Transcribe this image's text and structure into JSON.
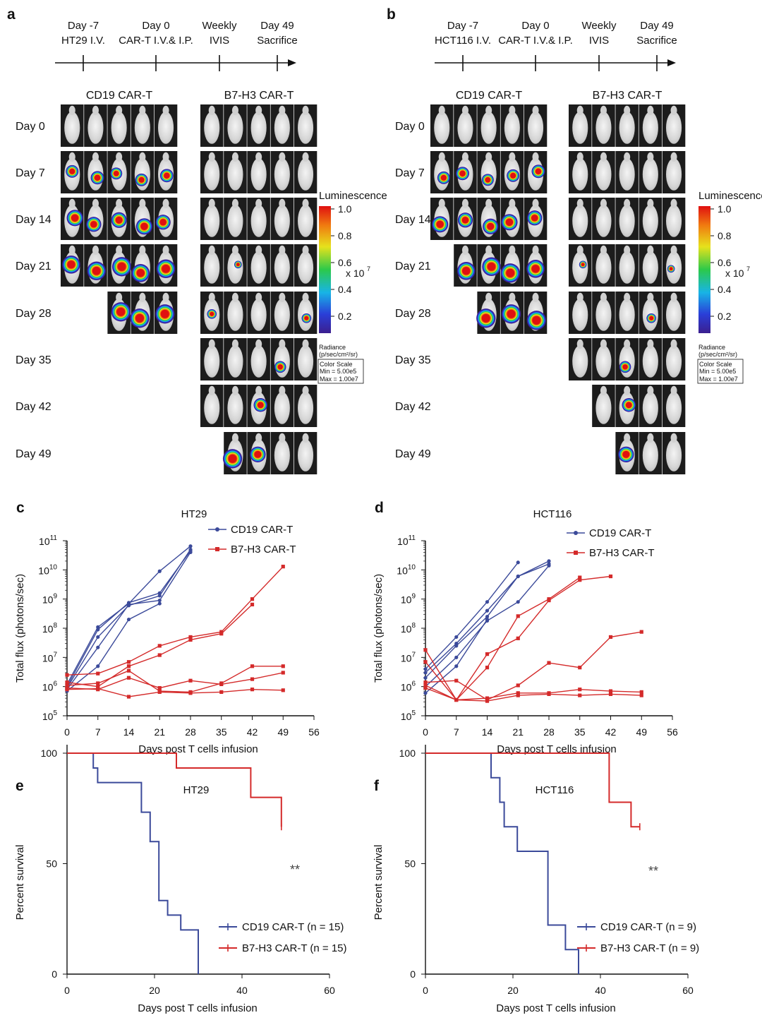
{
  "imaging_panels": [
    {
      "label": "a",
      "timeline": [
        {
          "top": "Day -7",
          "bottom": "HT29 I.V."
        },
        {
          "top": "Day 0",
          "bottom": "CAR-T I.V.& I.P."
        },
        {
          "top": "Weekly",
          "bottom": "IVIS"
        },
        {
          "top": "Day 49",
          "bottom": "Sacrifice"
        }
      ],
      "group_left": "CD19 CAR-T",
      "group_right": "B7-H3 CAR-T",
      "days": [
        "Day 0",
        "Day 7",
        "Day 14",
        "Day 21",
        "Day 28",
        "Day 35",
        "Day 42",
        "Day 49"
      ],
      "mice_left": [
        5,
        5,
        5,
        5,
        3,
        0,
        0,
        0
      ],
      "mice_right": [
        5,
        5,
        5,
        5,
        5,
        5,
        5,
        4
      ],
      "scale": {
        "title": "Luminescence",
        "ticks": [
          "1.0",
          "0.8",
          "0.6",
          "0.4",
          "0.2"
        ],
        "multiplier": "x 10",
        "multiplier_exp": "7",
        "radiance_line1": "Radiance",
        "radiance_line2": "(p/sec/cm²/sr)",
        "box_title": "Color Scale",
        "box_min": "Min  = 5.00e5",
        "box_max": "Max = 1.00e7"
      }
    },
    {
      "label": "b",
      "timeline": [
        {
          "top": "Day -7",
          "bottom": "HCT116 I.V."
        },
        {
          "top": "Day 0",
          "bottom": "CAR-T I.V.& I.P."
        },
        {
          "top": "Weekly",
          "bottom": "IVIS"
        },
        {
          "top": "Day 49",
          "bottom": "Sacrifice"
        }
      ],
      "group_left": "CD19 CAR-T",
      "group_right": "B7-H3 CAR-T",
      "days": [
        "Day 0",
        "Day 7",
        "Day 14",
        "Day 21",
        "Day 28",
        "Day 35",
        "Day 42",
        "Day 49"
      ],
      "mice_left": [
        5,
        5,
        5,
        4,
        3,
        0,
        0,
        0
      ],
      "mice_right": [
        5,
        5,
        5,
        5,
        5,
        5,
        4,
        3
      ],
      "scale": {
        "title": "Luminescence",
        "ticks": [
          "1.0",
          "0.8",
          "0.6",
          "0.4",
          "0.2"
        ],
        "multiplier": "x 10",
        "multiplier_exp": "7",
        "radiance_line1": "Radiance",
        "radiance_line2": "(p/sec/cm²/sr)",
        "box_title": "Color Scale",
        "box_min": "Min  = 5.00e5",
        "box_max": "Max = 1.00e7"
      }
    }
  ],
  "chart_data": [
    {
      "id": "c",
      "label": "c",
      "type": "line",
      "title": "HT29",
      "xlabel": "Days post T cells infusion",
      "ylabel": "Total flux (photons/sec)",
      "xlim": [
        0,
        56
      ],
      "xticks": [
        0,
        7,
        14,
        21,
        28,
        35,
        42,
        49,
        56
      ],
      "yscale": "log",
      "ylim_exp": [
        5,
        11
      ],
      "yticks_exp": [
        5,
        6,
        7,
        8,
        9,
        10,
        11
      ],
      "legend": [
        {
          "name": "CD19 CAR-T",
          "color": "#3b4a9a",
          "marker": "circle"
        },
        {
          "name": "B7-H3 CAR-T",
          "color": "#d42a2a",
          "marker": "square"
        }
      ],
      "series": [
        {
          "name": "CD19 CAR-T",
          "lines": [
            [
              [
                0,
                1200000.0
              ],
              [
                7,
                110000000.0
              ],
              [
                14,
                700000000.0
              ],
              [
                21,
                9000000000.0
              ],
              [
                28,
                65000000000.0
              ]
            ],
            [
              [
                0,
                1000000.0
              ],
              [
                7,
                90000000.0
              ],
              [
                14,
                750000000.0
              ],
              [
                21,
                1600000000.0
              ],
              [
                28,
                45000000000.0
              ]
            ],
            [
              [
                0,
                900000.0
              ],
              [
                7,
                50000000.0
              ],
              [
                14,
                600000000.0
              ],
              [
                21,
                1300000000.0
              ],
              [
                28,
                50000000000.0
              ]
            ],
            [
              [
                0,
                800000.0
              ],
              [
                7,
                22000000.0
              ],
              [
                14,
                650000000.0
              ],
              [
                21,
                900000000.0
              ],
              [
                28,
                40000000000.0
              ]
            ],
            [
              [
                0,
                700000.0
              ],
              [
                7,
                5000000.0
              ],
              [
                14,
                200000000.0
              ],
              [
                21,
                700000000.0
              ]
            ]
          ]
        },
        {
          "name": "B7-H3 CAR-T",
          "lines": [
            [
              [
                0,
                2500000.0
              ],
              [
                7,
                2800000.0
              ],
              [
                14,
                7000000.0
              ],
              [
                21,
                25000000.0
              ],
              [
                28,
                50000000.0
              ],
              [
                35,
                75000000.0
              ],
              [
                42,
                1000000000.0
              ],
              [
                49,
                13000000000.0
              ]
            ],
            [
              [
                0,
                1400000.0
              ],
              [
                7,
                1000000.0
              ],
              [
                14,
                5000000.0
              ],
              [
                21,
                12000000.0
              ],
              [
                28,
                40000000.0
              ],
              [
                35,
                65000000.0
              ],
              [
                42,
                650000000.0
              ]
            ],
            [
              [
                0,
                1100000.0
              ],
              [
                7,
                1300000.0
              ],
              [
                14,
                3500000.0
              ],
              [
                21,
                700000.0
              ],
              [
                28,
                650000.0
              ],
              [
                35,
                1300000.0
              ],
              [
                42,
                5000000.0
              ],
              [
                49,
                5000000.0
              ]
            ],
            [
              [
                0,
                900000.0
              ],
              [
                7,
                800000.0
              ],
              [
                14,
                2000000.0
              ],
              [
                21,
                900000.0
              ],
              [
                28,
                1600000.0
              ],
              [
                35,
                1200000.0
              ],
              [
                42,
                1800000.0
              ],
              [
                49,
                3000000.0
              ]
            ],
            [
              [
                0,
                800000.0
              ],
              [
                7,
                850000.0
              ],
              [
                14,
                450000.0
              ],
              [
                21,
                650000.0
              ],
              [
                28,
                600000.0
              ],
              [
                35,
                650000.0
              ],
              [
                42,
                800000.0
              ],
              [
                49,
                750000.0
              ]
            ]
          ]
        }
      ]
    },
    {
      "id": "d",
      "label": "d",
      "type": "line",
      "title": "HCT116",
      "xlabel": "Days post T cells infusion",
      "ylabel": "Total flux (photons/sec)",
      "xlim": [
        0,
        56
      ],
      "xticks": [
        0,
        7,
        14,
        21,
        28,
        35,
        42,
        49,
        56
      ],
      "yscale": "log",
      "ylim_exp": [
        5,
        11
      ],
      "yticks_exp": [
        5,
        6,
        7,
        8,
        9,
        10,
        11
      ],
      "legend": [
        {
          "name": "CD19 CAR-T",
          "color": "#3b4a9a",
          "marker": "circle"
        },
        {
          "name": "B7-H3 CAR-T",
          "color": "#d42a2a",
          "marker": "square"
        }
      ],
      "series": [
        {
          "name": "CD19 CAR-T",
          "lines": [
            [
              [
                0,
                4000000.0
              ],
              [
                7,
                50000000.0
              ],
              [
                14,
                800000000.0
              ],
              [
                21,
                18000000000.0
              ]
            ],
            [
              [
                0,
                3000000.0
              ],
              [
                7,
                30000000.0
              ],
              [
                14,
                400000000.0
              ],
              [
                21,
                6000000000.0
              ],
              [
                28,
                20000000000.0
              ]
            ],
            [
              [
                0,
                2000000.0
              ],
              [
                7,
                25000000.0
              ],
              [
                14,
                250000000.0
              ],
              [
                21,
                6000000000.0
              ],
              [
                28,
                16000000000.0
              ]
            ],
            [
              [
                0,
                1000000.0
              ],
              [
                7,
                10000000.0
              ],
              [
                14,
                180000000.0
              ],
              [
                21,
                800000000.0
              ],
              [
                28,
                14000000000.0
              ]
            ],
            [
              [
                0,
                600000.0
              ],
              [
                7,
                5000000.0
              ],
              [
                14,
                200000000.0
              ]
            ]
          ]
        },
        {
          "name": "B7-H3 CAR-T",
          "lines": [
            [
              [
                0,
                18000000.0
              ],
              [
                7,
                350000.0
              ],
              [
                14,
                13000000.0
              ],
              [
                21,
                45000000.0
              ],
              [
                28,
                900000000.0
              ],
              [
                35,
                4500000000.0
              ],
              [
                42,
                6000000000.0
              ]
            ],
            [
              [
                0,
                7000000.0
              ],
              [
                7,
                350000.0
              ],
              [
                14,
                4500000.0
              ],
              [
                21,
                260000000.0
              ],
              [
                28,
                1000000000.0
              ],
              [
                35,
                5500000000.0
              ]
            ],
            [
              [
                0,
                1400000.0
              ],
              [
                7,
                1600000.0
              ],
              [
                14,
                350000.0
              ],
              [
                21,
                1100000.0
              ],
              [
                28,
                6500000.0
              ],
              [
                35,
                4500000.0
              ],
              [
                42,
                50000000.0
              ],
              [
                49,
                75000000.0
              ]
            ],
            [
              [
                0,
                1100000.0
              ],
              [
                7,
                350000.0
              ],
              [
                14,
                400000.0
              ],
              [
                21,
                600000.0
              ],
              [
                28,
                600000.0
              ],
              [
                35,
                800000.0
              ],
              [
                42,
                700000.0
              ],
              [
                49,
                650000.0
              ]
            ],
            [
              [
                0,
                900000.0
              ],
              [
                7,
                350000.0
              ],
              [
                14,
                320000.0
              ],
              [
                21,
                500000.0
              ],
              [
                28,
                550000.0
              ],
              [
                35,
                500000.0
              ],
              [
                42,
                550000.0
              ],
              [
                49,
                500000.0
              ]
            ]
          ]
        }
      ]
    },
    {
      "id": "e",
      "label": "e",
      "type": "line",
      "title": "HT29",
      "xlabel": "Days post T cells infusion",
      "ylabel": "Percent survival",
      "xlim": [
        0,
        60
      ],
      "xticks": [
        0,
        20,
        40,
        60
      ],
      "ylim": [
        0,
        100
      ],
      "yticks": [
        0,
        50,
        100
      ],
      "significance": "**",
      "series": [
        {
          "name": "CD19 CAR-T (n = 15)",
          "color": "#3b4a9a",
          "steps": [
            [
              0,
              100
            ],
            [
              6,
              93.3
            ],
            [
              7,
              86.7
            ],
            [
              17,
              73.3
            ],
            [
              19,
              60
            ],
            [
              21,
              33.3
            ],
            [
              23,
              26.7
            ],
            [
              26,
              20
            ],
            [
              30,
              0
            ]
          ]
        },
        {
          "name": "B7-H3 CAR-T (n = 15)",
          "color": "#d42a2a",
          "steps": [
            [
              0,
              100
            ],
            [
              25,
              93.3
            ],
            [
              42,
              80
            ],
            [
              49,
              66.7
            ]
          ]
        }
      ]
    },
    {
      "id": "f",
      "label": "f",
      "type": "line",
      "title": "HCT116",
      "xlabel": "Days post T cells infusion",
      "ylabel": "Percent survival",
      "xlim": [
        0,
        60
      ],
      "xticks": [
        0,
        20,
        40,
        60
      ],
      "ylim": [
        0,
        100
      ],
      "yticks": [
        0,
        50,
        100
      ],
      "significance": "**",
      "series": [
        {
          "name": "CD19 CAR-T (n = 9)",
          "color": "#3b4a9a",
          "steps": [
            [
              0,
              100
            ],
            [
              15,
              88.9
            ],
            [
              17,
              77.8
            ],
            [
              18,
              66.7
            ],
            [
              21,
              55.6
            ],
            [
              28,
              22.2
            ],
            [
              32,
              11.1
            ],
            [
              35,
              0
            ]
          ]
        },
        {
          "name": "B7-H3 CAR-T (n = 9)",
          "color": "#d42a2a",
          "steps": [
            [
              0,
              100
            ],
            [
              42,
              77.8
            ],
            [
              47,
              66.7
            ],
            [
              49,
              66.7
            ]
          ]
        }
      ]
    }
  ]
}
